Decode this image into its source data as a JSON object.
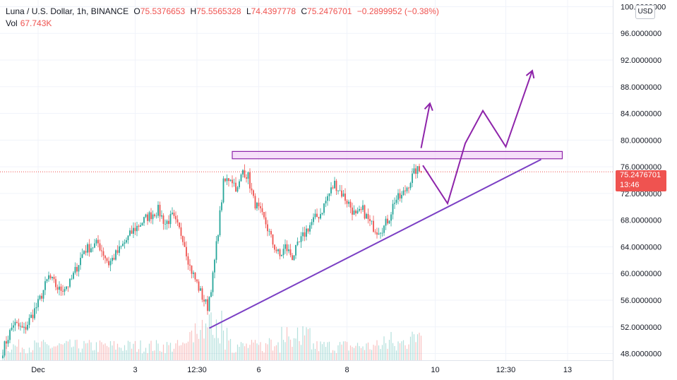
{
  "header": {
    "symbol": "Luna / U.S. Dollar, 1h, BINANCE",
    "open_label": "O",
    "open": "75.5376653",
    "high_label": "H",
    "high": "75.5565328",
    "low_label": "L",
    "low": "74.4397778",
    "close_label": "C",
    "close": "75.2476701",
    "change": "−0.2899952 (−0.38%)",
    "vol_label": "Vol",
    "vol": "67.743K"
  },
  "currency_button": "USD",
  "last_price": {
    "value": "75.2476701",
    "countdown": "13:46"
  },
  "colors": {
    "up": "#26a69a",
    "down": "#ef5350",
    "drawing": "#8e24aa",
    "zone_fill": "#f3d4f7",
    "trendline": "#7b3fc4"
  },
  "chart_data": {
    "type": "candlestick",
    "y_axis": {
      "min": 47,
      "max": 101,
      "ticks": [
        48,
        52,
        56,
        60,
        64,
        68,
        72,
        76,
        80,
        84,
        88,
        92,
        96,
        100
      ],
      "tick_format": "0.0000000"
    },
    "x_axis": {
      "ticks": [
        "Dec",
        "3",
        "12:30",
        "6",
        "8",
        "10",
        "12:30",
        "13"
      ],
      "tick_bars": [
        20,
        75,
        110,
        145,
        195,
        245,
        285,
        320
      ]
    },
    "price_anchors": [
      [
        0,
        48.5
      ],
      [
        6,
        52.5
      ],
      [
        12,
        51.5
      ],
      [
        20,
        55.5
      ],
      [
        26,
        59.5
      ],
      [
        32,
        57.5
      ],
      [
        38,
        58.5
      ],
      [
        46,
        63.5
      ],
      [
        54,
        64.5
      ],
      [
        60,
        61.5
      ],
      [
        66,
        63.5
      ],
      [
        74,
        66.5
      ],
      [
        82,
        68.5
      ],
      [
        88,
        69.5
      ],
      [
        92,
        67.5
      ],
      [
        96,
        68.5
      ],
      [
        102,
        65.5
      ],
      [
        106,
        61
      ],
      [
        110,
        58.5
      ],
      [
        113,
        56.5
      ],
      [
        116,
        55
      ],
      [
        119,
        59.5
      ],
      [
        122,
        66.5
      ],
      [
        125,
        73.5
      ],
      [
        129,
        74.5
      ],
      [
        133,
        72.5
      ],
      [
        136,
        75.5
      ],
      [
        139,
        74.5
      ],
      [
        142,
        71
      ],
      [
        145,
        69.5
      ],
      [
        149,
        67.5
      ],
      [
        153,
        64.5
      ],
      [
        157,
        62.5
      ],
      [
        160,
        64
      ],
      [
        164,
        62.5
      ],
      [
        168,
        64.5
      ],
      [
        172,
        66.5
      ],
      [
        176,
        68
      ],
      [
        180,
        69
      ],
      [
        184,
        71.5
      ],
      [
        188,
        73.5
      ],
      [
        192,
        72
      ],
      [
        196,
        70.5
      ],
      [
        200,
        68.5
      ],
      [
        204,
        69.5
      ],
      [
        208,
        67.5
      ],
      [
        212,
        66.5
      ],
      [
        216,
        67
      ],
      [
        219,
        68.5
      ],
      [
        222,
        71
      ],
      [
        226,
        71.5
      ],
      [
        230,
        73.5
      ],
      [
        234,
        75.5
      ],
      [
        237,
        75.25
      ]
    ],
    "volume": {
      "max": 1,
      "profile": "low with spikes around 12:30 (bar ~110)"
    },
    "drawings": {
      "resistance_zone": {
        "price_low": 77.2,
        "price_high": 78.3,
        "from_bar": 130,
        "to_bar": 317
      },
      "ascending_trendline": {
        "from": [
          117,
          51.8
        ],
        "to": [
          305,
          77.1
        ]
      },
      "forecast_path": [
        [
          238,
          76.2
        ],
        [
          252,
          70.5
        ],
        [
          262,
          79.5
        ],
        [
          272,
          84.4
        ],
        [
          285,
          79
        ],
        [
          300,
          90.4
        ]
      ],
      "breakout_arrow": [
        [
          237,
          78.8
        ],
        [
          242,
          85.5
        ]
      ]
    }
  }
}
